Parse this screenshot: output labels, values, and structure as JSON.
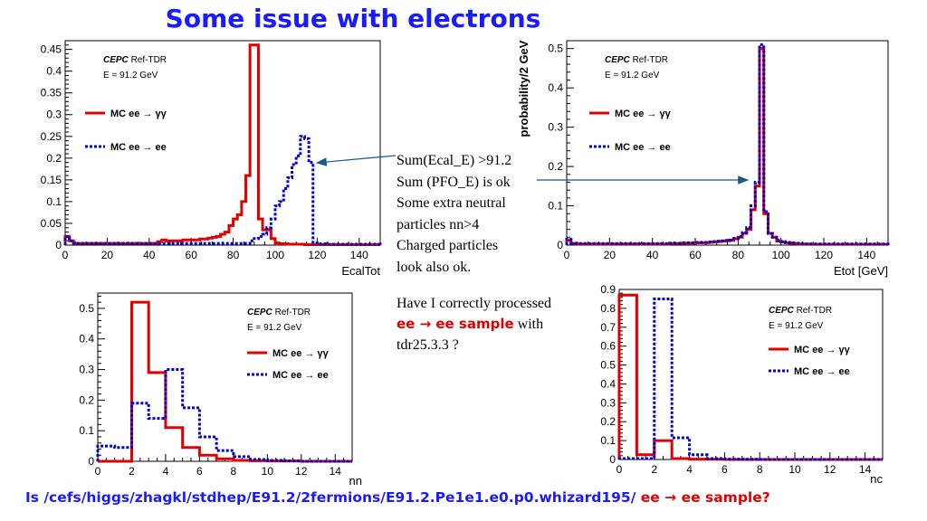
{
  "title": "Some issue with electrons",
  "colors": {
    "title": "#1a1aff",
    "red": "#e00000",
    "blue": "#0000cc",
    "arrow": "#1a5a8a"
  },
  "notes": [
    "Sum(Ecal_E) >91.2",
    "Sum (PFO_E) is ok",
    "Some extra neutral",
    "particles nn>4",
    "Charged particles",
    "look also ok."
  ],
  "question": {
    "p1": "Have I correctly processed ",
    "p2": "ee → ee sample",
    "p3": " with tdr25.3.3  ?"
  },
  "footer": {
    "p1": "Is /cefs/higgs/zhagkl/stdhep/E91.2/2fermions/E91.2.Pe1e1.e0.p0.whizard195/ ",
    "p2": "ee → ee sample",
    "p3": "?"
  },
  "chart_data": [
    {
      "type": "line",
      "xlabel": "EcalTot",
      "ylabel": "",
      "xlim": [
        0,
        150
      ],
      "ylim": [
        0,
        0.47
      ],
      "xticks": [
        0,
        20,
        40,
        60,
        80,
        100,
        120,
        140
      ],
      "yticks": [
        0,
        0.05,
        0.1,
        0.15,
        0.2,
        0.25,
        0.3,
        0.35,
        0.4,
        0.45
      ],
      "ytick_labels": [
        "0",
        "0.05",
        "0.1",
        "0.15",
        "0.2",
        "0.25",
        "0.3",
        "0.35",
        "0.4",
        "0.45"
      ],
      "grid": false,
      "legend_position": "top-left",
      "annotation": {
        "brand": "CEPC",
        "text": "Ref-TDR",
        "energy": "E = 91.2 GeV"
      },
      "series": [
        {
          "name": "MC ee  →  γγ",
          "color": "#e00000",
          "style": "solid",
          "edges": [
            0,
            2,
            4,
            6,
            8,
            10,
            12,
            14,
            16,
            18,
            20,
            22,
            24,
            26,
            28,
            30,
            32,
            34,
            36,
            38,
            40,
            42,
            44,
            46,
            48,
            50,
            52,
            54,
            56,
            58,
            60,
            62,
            64,
            66,
            68,
            70,
            72,
            74,
            76,
            78,
            80,
            82,
            84,
            86,
            88,
            90,
            92,
            94,
            96,
            98,
            100,
            102,
            104,
            106,
            108,
            110,
            112,
            114,
            116,
            118,
            120,
            122,
            124,
            126,
            128,
            130,
            132,
            134,
            136,
            138,
            140,
            142,
            144,
            146,
            148,
            150
          ],
          "values": [
            0.02,
            0.01,
            0.004,
            0.004,
            0.004,
            0.004,
            0.004,
            0.004,
            0.004,
            0.004,
            0.004,
            0.004,
            0.004,
            0.004,
            0.004,
            0.004,
            0.004,
            0.004,
            0.004,
            0.004,
            0.004,
            0.004,
            0.008,
            0.012,
            0.01,
            0.01,
            0.01,
            0.01,
            0.012,
            0.012,
            0.012,
            0.012,
            0.014,
            0.014,
            0.016,
            0.018,
            0.02,
            0.025,
            0.03,
            0.045,
            0.06,
            0.07,
            0.1,
            0.16,
            0.46,
            0.46,
            0.06,
            0.035,
            0.035,
            0.015,
            0.005,
            0.003,
            0.003,
            0.002,
            0.002,
            0.002,
            0.002,
            0.001,
            0.001,
            0.001,
            0.001,
            0.001,
            0.001,
            0.001,
            0.001,
            0.001,
            0.001,
            0.001,
            0.001,
            0.001,
            0.001,
            0.001,
            0.001,
            0.001,
            0.001
          ]
        },
        {
          "name": "MC ee   → ee",
          "color": "#0000cc",
          "style": "dashed",
          "edges": [
            0,
            2,
            4,
            6,
            8,
            10,
            12,
            14,
            16,
            18,
            20,
            22,
            24,
            26,
            28,
            30,
            32,
            34,
            36,
            38,
            40,
            42,
            44,
            46,
            48,
            50,
            52,
            54,
            56,
            58,
            60,
            62,
            64,
            66,
            68,
            70,
            72,
            74,
            76,
            78,
            80,
            82,
            84,
            86,
            88,
            90,
            92,
            94,
            96,
            98,
            100,
            102,
            104,
            106,
            108,
            110,
            112,
            114,
            116,
            118,
            120,
            122,
            124,
            126,
            128,
            130,
            132,
            134,
            136,
            138,
            140,
            142,
            144,
            146,
            148,
            150
          ],
          "values": [
            0.02,
            0.01,
            0.004,
            0.004,
            0.004,
            0.004,
            0.004,
            0.004,
            0.004,
            0.004,
            0.004,
            0.004,
            0.004,
            0.004,
            0.004,
            0.004,
            0.004,
            0.004,
            0.004,
            0.004,
            0.004,
            0.004,
            0.004,
            0.004,
            0.004,
            0.004,
            0.004,
            0.004,
            0.004,
            0.004,
            0.004,
            0.004,
            0.004,
            0.004,
            0.004,
            0.004,
            0.004,
            0.004,
            0.004,
            0.004,
            0.004,
            0.004,
            0.004,
            0.004,
            0.01,
            0.015,
            0.02,
            0.025,
            0.04,
            0.06,
            0.09,
            0.1,
            0.13,
            0.155,
            0.185,
            0.205,
            0.25,
            0.245,
            0.19,
            0.005,
            0.003,
            0.003,
            0.002,
            0.002,
            0.002,
            0.002,
            0.002,
            0.002,
            0.002,
            0.002,
            0.002,
            0.002,
            0.002,
            0.002,
            0.002
          ]
        }
      ]
    },
    {
      "type": "line",
      "xlabel": "Etot [GeV]",
      "ylabel": "probability/2 GeV",
      "xlim": [
        0,
        150
      ],
      "ylim": [
        0,
        0.52
      ],
      "xticks": [
        0,
        20,
        40,
        60,
        80,
        100,
        120,
        140
      ],
      "yticks": [
        0,
        0.1,
        0.2,
        0.3,
        0.4,
        0.5
      ],
      "ytick_labels": [
        "0",
        "0.1",
        "0.2",
        "0.3",
        "0.4",
        "0.5"
      ],
      "grid": false,
      "legend_position": "top-left",
      "annotation": {
        "brand": "CEPC",
        "text": "Ref-TDR",
        "energy": "E = 91.2 GeV"
      },
      "series": [
        {
          "name": "MC ee  →  γγ",
          "color": "#e00000",
          "style": "solid",
          "edges": [
            0,
            2,
            4,
            6,
            8,
            10,
            12,
            14,
            16,
            18,
            20,
            22,
            24,
            26,
            28,
            30,
            32,
            34,
            36,
            38,
            40,
            42,
            44,
            46,
            48,
            50,
            52,
            54,
            56,
            58,
            60,
            62,
            64,
            66,
            68,
            70,
            72,
            74,
            76,
            78,
            80,
            82,
            84,
            86,
            88,
            90,
            92,
            94,
            96,
            98,
            100,
            102,
            104,
            106,
            108,
            110,
            112,
            114,
            116,
            118,
            120,
            122,
            124,
            126,
            128,
            130,
            132,
            134,
            136,
            138,
            140,
            142,
            144,
            146,
            148,
            150
          ],
          "values": [
            0.012,
            0.004,
            0.003,
            0.003,
            0.003,
            0.003,
            0.003,
            0.003,
            0.003,
            0.003,
            0.003,
            0.003,
            0.003,
            0.003,
            0.003,
            0.003,
            0.003,
            0.003,
            0.003,
            0.003,
            0.003,
            0.003,
            0.003,
            0.003,
            0.004,
            0.004,
            0.004,
            0.005,
            0.005,
            0.005,
            0.006,
            0.006,
            0.006,
            0.007,
            0.008,
            0.009,
            0.01,
            0.011,
            0.012,
            0.016,
            0.02,
            0.03,
            0.04,
            0.09,
            0.15,
            0.5,
            0.08,
            0.03,
            0.02,
            0.01,
            0.008,
            0.006,
            0.005,
            0.004,
            0.003,
            0.003,
            0.003,
            0.002,
            0.002,
            0.002,
            0.002,
            0.002,
            0.002,
            0.002,
            0.002,
            0.002,
            0.002,
            0.002,
            0.002,
            0.002,
            0.002,
            0.002,
            0.002,
            0.002,
            0.002
          ]
        },
        {
          "name": "MC ee   → ee",
          "color": "#0000cc",
          "style": "dashed",
          "edges": [
            0,
            2,
            4,
            6,
            8,
            10,
            12,
            14,
            16,
            18,
            20,
            22,
            24,
            26,
            28,
            30,
            32,
            34,
            36,
            38,
            40,
            42,
            44,
            46,
            48,
            50,
            52,
            54,
            56,
            58,
            60,
            62,
            64,
            66,
            68,
            70,
            72,
            74,
            76,
            78,
            80,
            82,
            84,
            86,
            88,
            90,
            92,
            94,
            96,
            98,
            100,
            102,
            104,
            106,
            108,
            110,
            112,
            114,
            116,
            118,
            120,
            122,
            124,
            126,
            128,
            130,
            132,
            134,
            136,
            138,
            140,
            142,
            144,
            146,
            148,
            150
          ],
          "values": [
            0.015,
            0.005,
            0.004,
            0.004,
            0.004,
            0.004,
            0.004,
            0.004,
            0.004,
            0.004,
            0.004,
            0.004,
            0.004,
            0.004,
            0.004,
            0.004,
            0.004,
            0.004,
            0.004,
            0.004,
            0.004,
            0.004,
            0.004,
            0.004,
            0.005,
            0.005,
            0.005,
            0.006,
            0.006,
            0.006,
            0.007,
            0.007,
            0.007,
            0.008,
            0.009,
            0.01,
            0.011,
            0.012,
            0.013,
            0.017,
            0.022,
            0.032,
            0.045,
            0.1,
            0.16,
            0.51,
            0.085,
            0.03,
            0.02,
            0.012,
            0.009,
            0.007,
            0.006,
            0.005,
            0.004,
            0.003,
            0.003,
            0.003,
            0.003,
            0.003,
            0.003,
            0.003,
            0.003,
            0.003,
            0.003,
            0.003,
            0.003,
            0.003,
            0.003,
            0.003,
            0.003,
            0.003,
            0.003,
            0.003,
            0.003
          ]
        }
      ]
    },
    {
      "type": "line",
      "xlabel": "nn",
      "ylabel": "",
      "xlim": [
        0,
        15
      ],
      "ylim": [
        0,
        0.55
      ],
      "xticks": [
        0,
        2,
        4,
        6,
        8,
        10,
        12,
        14
      ],
      "yticks": [
        0,
        0.1,
        0.2,
        0.3,
        0.4,
        0.5
      ],
      "ytick_labels": [
        "0",
        "0.1",
        "0.2",
        "0.3",
        "0.4",
        "0.5"
      ],
      "grid": false,
      "legend_position": "center-right",
      "annotation": {
        "brand": "CEPC",
        "text": "Ref-TDR",
        "energy": "E = 91.2 GeV"
      },
      "series": [
        {
          "name": "MC ee  →  γγ",
          "color": "#e00000",
          "style": "solid",
          "edges": [
            0,
            1,
            2,
            3,
            4,
            5,
            6,
            7,
            8,
            9,
            10,
            11,
            12,
            13,
            14,
            15
          ],
          "values": [
            0,
            0,
            0.52,
            0.29,
            0.11,
            0.045,
            0.02,
            0.008,
            0.003,
            0.002,
            0.001,
            0.001,
            0,
            0,
            0
          ]
        },
        {
          "name": "MC ee   → ee",
          "color": "#0000cc",
          "style": "dashed",
          "edges": [
            0,
            1,
            2,
            3,
            4,
            5,
            6,
            7,
            8,
            9,
            10,
            11,
            12,
            13,
            14,
            15
          ],
          "values": [
            0.05,
            0.045,
            0.19,
            0.14,
            0.3,
            0.175,
            0.08,
            0.035,
            0.015,
            0.006,
            0.003,
            0.001,
            0,
            0,
            0
          ]
        }
      ]
    },
    {
      "type": "line",
      "xlabel": "nc",
      "ylabel": "",
      "xlim": [
        0,
        15
      ],
      "ylim": [
        0,
        0.9
      ],
      "xticks": [
        0,
        2,
        4,
        6,
        8,
        10,
        12,
        14
      ],
      "yticks": [
        0,
        0.1,
        0.2,
        0.3,
        0.4,
        0.5,
        0.6,
        0.7,
        0.8,
        0.9
      ],
      "ytick_labels": [
        "0",
        "0.1",
        "0.2",
        "0.3",
        "0.4",
        "0.5",
        "0.6",
        "0.7",
        "0.8",
        "0.9"
      ],
      "grid": false,
      "legend_position": "center-right",
      "annotation": {
        "brand": "CEPC",
        "text": "Ref-TDR",
        "energy": "E = 91.2 GeV"
      },
      "series": [
        {
          "name": "MC ee  →  γγ",
          "color": "#e00000",
          "style": "solid",
          "edges": [
            0,
            1,
            2,
            3,
            4,
            5,
            6,
            7,
            8,
            9,
            10,
            11,
            12,
            13,
            14,
            15
          ],
          "values": [
            0.87,
            0.025,
            0.1,
            0.005,
            0.002,
            0.001,
            0,
            0,
            0,
            0,
            0,
            0,
            0,
            0,
            0
          ]
        },
        {
          "name": "MC ee   → ee",
          "color": "#0000cc",
          "style": "dashed",
          "edges": [
            0,
            1,
            2,
            3,
            4,
            5,
            6,
            7,
            8,
            9,
            10,
            11,
            12,
            13,
            14,
            15
          ],
          "values": [
            0.005,
            0.005,
            0.85,
            0.115,
            0.025,
            0.005,
            0.002,
            0.001,
            0,
            0,
            0,
            0,
            0,
            0,
            0
          ]
        }
      ]
    }
  ]
}
